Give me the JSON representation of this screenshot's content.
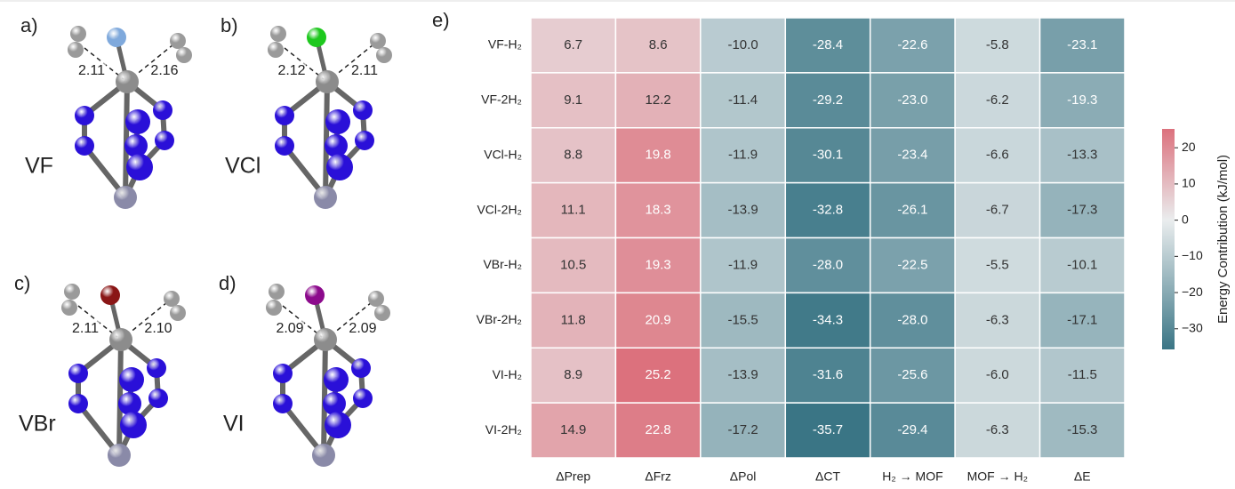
{
  "molecules": [
    {
      "panel": "a)",
      "name": "VF",
      "d_left": "2.11",
      "d_right": "2.16"
    },
    {
      "panel": "b)",
      "name": "VCl",
      "d_left": "2.12",
      "d_right": "2.11"
    },
    {
      "panel": "c)",
      "name": "VBr",
      "d_left": "2.11",
      "d_right": "2.10"
    },
    {
      "panel": "d)",
      "name": "VI",
      "d_left": "2.09",
      "d_right": "2.09"
    }
  ],
  "chart_data": {
    "type": "heatmap",
    "panel_label": "e)",
    "rows": [
      "VF-H₂",
      "VF-2H₂",
      "VCl-H₂",
      "VCl-2H₂",
      "VBr-H₂",
      "VBr-2H₂",
      "VI-H₂",
      "VI-2H₂"
    ],
    "columns": [
      "ΔPrep",
      "ΔFrz",
      "ΔPol",
      "ΔCT",
      "H₂ → MOF",
      "MOF → H₂",
      "ΔE"
    ],
    "values": [
      [
        6.7,
        8.6,
        -10.0,
        -28.4,
        -22.6,
        -5.8,
        -23.1
      ],
      [
        9.1,
        12.2,
        -11.4,
        -29.2,
        -23.0,
        -6.2,
        -19.3
      ],
      [
        8.8,
        19.8,
        -11.9,
        -30.1,
        -23.4,
        -6.6,
        -13.3
      ],
      [
        11.1,
        18.3,
        -13.9,
        -32.8,
        -26.1,
        -6.7,
        -17.3
      ],
      [
        10.5,
        19.3,
        -11.9,
        -28.0,
        -22.5,
        -5.5,
        -10.1
      ],
      [
        11.8,
        20.9,
        -15.5,
        -34.3,
        -28.0,
        -6.3,
        -17.1
      ],
      [
        8.9,
        25.2,
        -13.9,
        -31.6,
        -25.6,
        -6.0,
        -11.5
      ],
      [
        14.9,
        22.8,
        -17.2,
        -35.7,
        -29.4,
        -6.3,
        -15.3
      ]
    ],
    "value_labels": [
      [
        "6.7",
        "8.6",
        "-10.0",
        "-28.4",
        "-22.6",
        "-5.8",
        "-23.1"
      ],
      [
        "9.1",
        "12.2",
        "-11.4",
        "-29.2",
        "-23.0",
        "-6.2",
        "-19.3"
      ],
      [
        "8.8",
        "19.8",
        "-11.9",
        "-30.1",
        "-23.4",
        "-6.6",
        "-13.3"
      ],
      [
        "11.1",
        "18.3",
        "-13.9",
        "-32.8",
        "-26.1",
        "-6.7",
        "-17.3"
      ],
      [
        "10.5",
        "19.3",
        "-11.9",
        "-28.0",
        "-22.5",
        "-5.5",
        "-10.1"
      ],
      [
        "11.8",
        "20.9",
        "-15.5",
        "-34.3",
        "-28.0",
        "-6.3",
        "-17.1"
      ],
      [
        "8.9",
        "25.2",
        "-13.9",
        "-31.6",
        "-25.6",
        "-6.0",
        "-11.5"
      ],
      [
        "14.9",
        "22.8",
        "-17.2",
        "-35.7",
        "-29.4",
        "-6.3",
        "-15.3"
      ]
    ],
    "colorbar_label": "Energy Contribution (kJ/mol)",
    "zlim": [
      -35.7,
      25.2
    ],
    "zticks": [
      20,
      10,
      0,
      {
        "value": -10,
        "label": "−10"
      },
      {
        "value": -20,
        "label": "−20"
      },
      {
        "value": -30,
        "label": "−30"
      }
    ]
  }
}
